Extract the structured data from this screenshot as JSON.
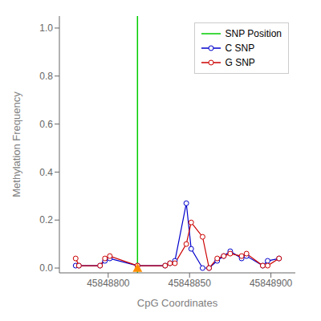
{
  "chart_data": {
    "type": "line",
    "xlabel": "CpG Coordinates",
    "ylabel": "Methylation Frequency",
    "x": [
      45848780,
      45848782,
      45848795,
      45848798,
      45848801,
      45848818,
      45848835,
      45848838,
      45848841,
      45848848,
      45848851,
      45848858,
      45848862,
      45848867,
      45848871,
      45848875,
      45848882,
      45848885,
      45848895,
      45848898,
      45848905
    ],
    "series": [
      {
        "name": "C SNP",
        "color": "#0000cc",
        "marker": "circle",
        "values": [
          0.01,
          0.01,
          0.01,
          0.03,
          0.04,
          0.01,
          0.01,
          0.02,
          0.03,
          0.27,
          0.08,
          0.0,
          0.0,
          0.03,
          0.05,
          0.07,
          0.04,
          0.05,
          0.01,
          0.03,
          0.04
        ]
      },
      {
        "name": "G SNP",
        "color": "#cc0000",
        "marker": "circle",
        "values": [
          0.04,
          0.01,
          0.01,
          0.04,
          0.05,
          0.01,
          0.01,
          0.02,
          0.02,
          0.1,
          0.19,
          0.13,
          0.0,
          0.04,
          0.05,
          0.06,
          0.05,
          0.06,
          0.01,
          0.01,
          0.04
        ]
      }
    ],
    "snp_line": {
      "name": "SNP Position",
      "x": 45848818,
      "color": "#00cc00"
    },
    "snp_marker": {
      "x": 45848818,
      "y": 0.0,
      "color": "#ff8c00",
      "marker": "triangle"
    },
    "xlim": [
      45848770,
      45848915
    ],
    "xticks": [
      45848800,
      45848850,
      45848900
    ],
    "ylim": [
      -0.02,
      1.05
    ],
    "yticks": [
      {
        "value": 0.0,
        "label": "0.0"
      },
      0.2,
      0.4,
      0.6,
      0.8,
      {
        "value": 1.0,
        "label": "1.0"
      }
    ],
    "legend": "upper right"
  }
}
